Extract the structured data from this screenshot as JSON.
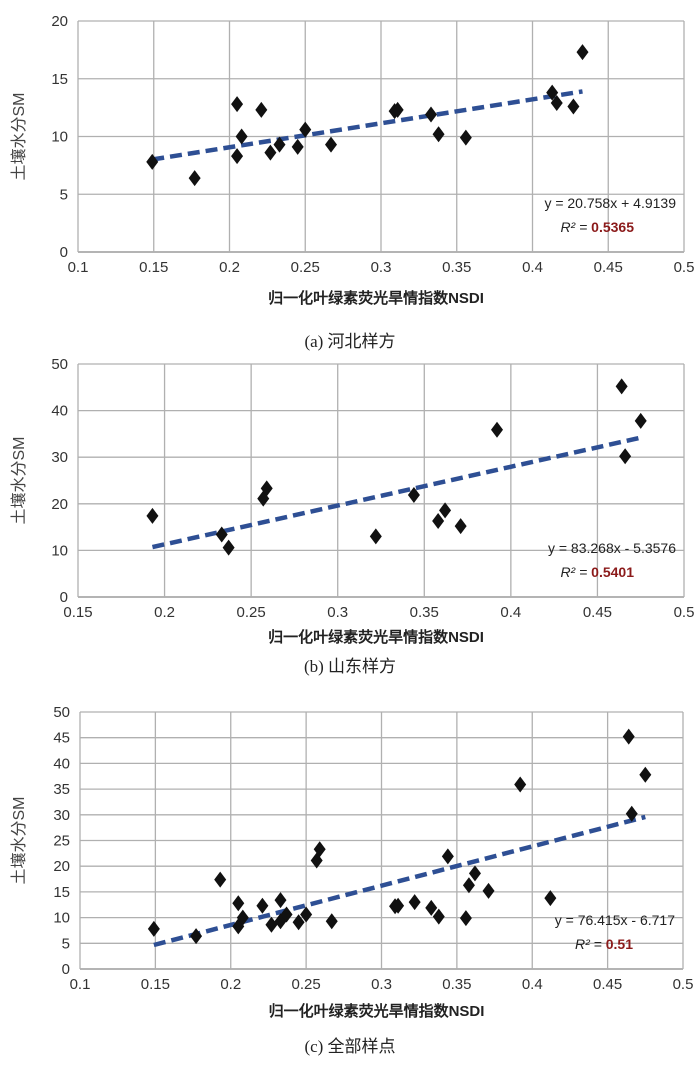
{
  "chart_data": [
    {
      "type": "scatter",
      "caption": "(a) 河北样方",
      "xlabel": "归一化叶绿素荧光旱情指数NSDI",
      "ylabel": "土壤水分SM",
      "xlim": [
        0.1,
        0.5
      ],
      "ylim": [
        0,
        20
      ],
      "xticks": [
        "0.1",
        "0.15",
        "0.2",
        "0.25",
        "0.3",
        "0.35",
        "0.4",
        "0.45",
        "0.5"
      ],
      "yticks": [
        "0",
        "5",
        "10",
        "15",
        "20"
      ],
      "grid": true,
      "points": [
        [
          0.149,
          7.8
        ],
        [
          0.177,
          6.4
        ],
        [
          0.205,
          12.8
        ],
        [
          0.205,
          8.3
        ],
        [
          0.208,
          10.0
        ],
        [
          0.221,
          12.3
        ],
        [
          0.227,
          8.6
        ],
        [
          0.233,
          9.3
        ],
        [
          0.245,
          9.1
        ],
        [
          0.25,
          10.6
        ],
        [
          0.267,
          9.3
        ],
        [
          0.309,
          12.2
        ],
        [
          0.311,
          12.3
        ],
        [
          0.333,
          11.9
        ],
        [
          0.338,
          10.2
        ],
        [
          0.356,
          9.9
        ],
        [
          0.413,
          13.8
        ],
        [
          0.416,
          12.9
        ],
        [
          0.427,
          12.6
        ],
        [
          0.433,
          17.3
        ]
      ],
      "trendline": {
        "slope": 20.758,
        "intercept": 4.9139,
        "x_range": [
          0.149,
          0.433
        ]
      },
      "equation": "y = 20.758x + 4.9139",
      "r2_label": "R² = ",
      "r2_value": "0.5365"
    },
    {
      "type": "scatter",
      "caption": "(b) 山东样方",
      "xlabel": "归一化叶绿素荧光旱情指数NSDI",
      "ylabel": "土壤水分SM",
      "xlim": [
        0.15,
        0.5
      ],
      "ylim": [
        0,
        50
      ],
      "xticks": [
        "0.15",
        "0.2",
        "0.25",
        "0.3",
        "0.35",
        "0.4",
        "0.45",
        "0.5"
      ],
      "yticks": [
        "0",
        "10",
        "20",
        "30",
        "40",
        "50"
      ],
      "grid": true,
      "points": [
        [
          0.193,
          17.4
        ],
        [
          0.233,
          13.4
        ],
        [
          0.237,
          10.6
        ],
        [
          0.257,
          21.1
        ],
        [
          0.259,
          23.3
        ],
        [
          0.322,
          13.0
        ],
        [
          0.344,
          21.9
        ],
        [
          0.358,
          16.3
        ],
        [
          0.362,
          18.6
        ],
        [
          0.371,
          15.2
        ],
        [
          0.392,
          35.9
        ],
        [
          0.464,
          45.2
        ],
        [
          0.466,
          30.2
        ],
        [
          0.475,
          37.8
        ]
      ],
      "trendline": {
        "slope": 83.268,
        "intercept": -5.3576,
        "x_range": [
          0.193,
          0.475
        ]
      },
      "equation": "y = 83.268x - 5.3576",
      "r2_label": "R² = ",
      "r2_value": "0.5401"
    },
    {
      "type": "scatter",
      "caption": "(c) 全部样点",
      "xlabel": "归一化叶绿素荧光旱情指数NSDI",
      "ylabel": "土壤水分SM",
      "xlim": [
        0.1,
        0.5
      ],
      "ylim": [
        0,
        50
      ],
      "xticks": [
        "0.1",
        "0.15",
        "0.2",
        "0.25",
        "0.3",
        "0.35",
        "0.4",
        "0.45",
        "0.5"
      ],
      "yticks": [
        "0",
        "5",
        "10",
        "15",
        "20",
        "25",
        "30",
        "35",
        "40",
        "45",
        "50"
      ],
      "grid": true,
      "points": [
        [
          0.149,
          7.8
        ],
        [
          0.177,
          6.4
        ],
        [
          0.205,
          12.8
        ],
        [
          0.205,
          8.3
        ],
        [
          0.208,
          10.0
        ],
        [
          0.221,
          12.3
        ],
        [
          0.227,
          8.6
        ],
        [
          0.233,
          9.3
        ],
        [
          0.245,
          9.1
        ],
        [
          0.25,
          10.6
        ],
        [
          0.267,
          9.3
        ],
        [
          0.309,
          12.2
        ],
        [
          0.311,
          12.3
        ],
        [
          0.333,
          11.9
        ],
        [
          0.338,
          10.2
        ],
        [
          0.356,
          9.9
        ],
        [
          0.412,
          13.8
        ],
        [
          0.193,
          17.4
        ],
        [
          0.233,
          13.4
        ],
        [
          0.237,
          10.6
        ],
        [
          0.257,
          21.1
        ],
        [
          0.259,
          23.3
        ],
        [
          0.322,
          13.0
        ],
        [
          0.344,
          21.9
        ],
        [
          0.358,
          16.3
        ],
        [
          0.362,
          18.6
        ],
        [
          0.371,
          15.2
        ],
        [
          0.392,
          35.9
        ],
        [
          0.464,
          45.2
        ],
        [
          0.466,
          30.2
        ],
        [
          0.475,
          37.8
        ]
      ],
      "trendline": {
        "slope": 76.415,
        "intercept": -6.717,
        "x_range": [
          0.149,
          0.475
        ]
      },
      "equation": "y = 76.415x - 6.717",
      "r2_label": "R² = ",
      "r2_value": "0.51"
    }
  ],
  "colors": {
    "grid": "#b0b0b0",
    "marker": "#111111",
    "trend": "#2e4f94",
    "r2": "#8b1a1a"
  }
}
